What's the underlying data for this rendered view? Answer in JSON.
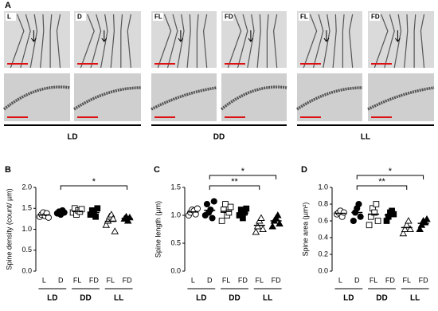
{
  "panel_a": {
    "label": "A",
    "images": [
      "L",
      "D",
      "FL",
      "FD",
      "FL",
      "FD"
    ],
    "groups": [
      "LD",
      "DD",
      "LL"
    ]
  },
  "chart_data": [
    {
      "type": "dot",
      "panel": "B",
      "ylabel": "Spine density (count/ µm)",
      "categories": [
        "L",
        "D",
        "FL",
        "FD",
        "FL",
        "FD"
      ],
      "groups": [
        "LD",
        "DD",
        "LL"
      ],
      "values": [
        [
          1.3,
          1.35,
          1.4,
          1.32,
          1.38,
          1.28
        ],
        [
          1.38,
          1.42,
          1.35,
          1.45,
          1.4
        ],
        [
          1.4,
          1.5,
          1.35,
          1.45,
          1.42,
          1.48
        ],
        [
          1.35,
          1.45,
          1.4,
          1.3,
          1.5
        ],
        [
          1.1,
          1.2,
          1.3,
          1.35,
          1.25,
          0.95
        ],
        [
          1.25,
          1.3,
          1.2,
          1.28
        ]
      ],
      "means": [
        1.34,
        1.4,
        1.43,
        1.4,
        1.19,
        1.26
      ],
      "ylim": [
        0,
        2
      ],
      "yticks": [
        {
          "value": 0,
          "label": "0.0"
        },
        0.5,
        {
          "value": 1,
          "label": "1.0"
        },
        1.5,
        {
          "value": 2,
          "label": "2.0"
        }
      ],
      "annotations": [
        "*"
      ]
    },
    {
      "type": "dot",
      "panel": "C",
      "ylabel": "Spine length (µm)",
      "categories": [
        "L",
        "D",
        "FL",
        "FD",
        "FL",
        "FD"
      ],
      "groups": [
        "LD",
        "DD",
        "LL"
      ],
      "values": [
        [
          1.0,
          1.05,
          1.1,
          1.08,
          1.02,
          1.12
        ],
        [
          1.0,
          1.2,
          1.05,
          1.1,
          0.95,
          1.25
        ],
        [
          0.9,
          1.1,
          1.2,
          1.0,
          1.05,
          1.15
        ],
        [
          1.0,
          1.1,
          0.95,
          1.05,
          1.12
        ],
        [
          0.7,
          0.8,
          0.9,
          0.95,
          0.75
        ],
        [
          0.8,
          0.9,
          0.95,
          1.0,
          0.85
        ]
      ],
      "means": [
        1.06,
        1.09,
        1.07,
        1.04,
        0.82,
        0.9
      ],
      "ylim": [
        0,
        1.5
      ],
      "yticks": [
        {
          "value": 0,
          "label": "0.0"
        },
        0.5,
        {
          "value": 1,
          "label": "1.0"
        },
        1.5
      ],
      "annotations": [
        "**",
        "*"
      ]
    },
    {
      "type": "dot",
      "panel": "D",
      "ylabel": "Spine area (µm²)",
      "categories": [
        "L",
        "D",
        "FL",
        "FD",
        "FL",
        "FD"
      ],
      "groups": [
        "LD",
        "DD",
        "LL"
      ],
      "values": [
        [
          0.68,
          0.7,
          0.72,
          0.65,
          0.7
        ],
        [
          0.6,
          0.7,
          0.75,
          0.8,
          0.65
        ],
        [
          0.55,
          0.65,
          0.75,
          0.7,
          0.8,
          0.6
        ],
        [
          0.6,
          0.65,
          0.7,
          0.72,
          0.68
        ],
        [
          0.45,
          0.5,
          0.55,
          0.6,
          0.5
        ],
        [
          0.5,
          0.55,
          0.6,
          0.58,
          0.62
        ]
      ],
      "means": [
        0.69,
        0.7,
        0.68,
        0.67,
        0.52,
        0.57
      ],
      "ylim": [
        0,
        1
      ],
      "yticks": [
        {
          "value": 0,
          "label": "0.0"
        },
        0.2,
        0.4,
        0.6,
        0.8,
        {
          "value": 1,
          "label": "1.0"
        }
      ],
      "annotations": [
        "**",
        "*"
      ]
    }
  ]
}
